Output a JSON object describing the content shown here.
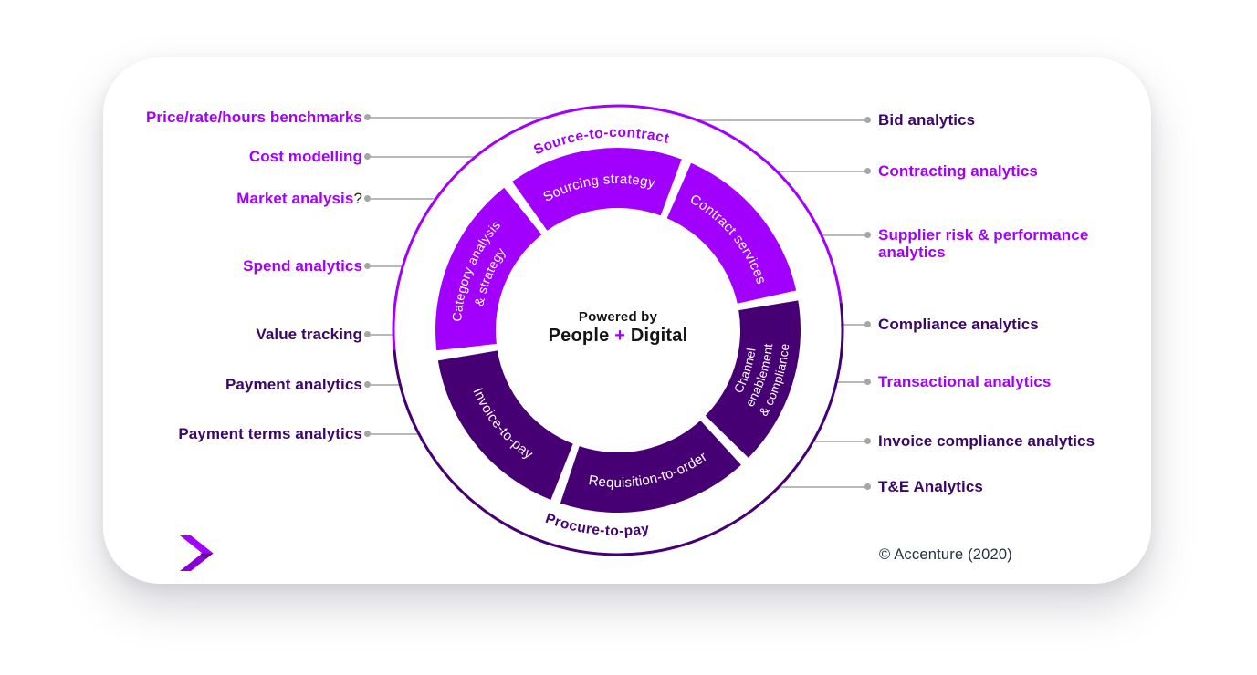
{
  "page": {
    "copyright": "© Accenture (2020)"
  },
  "center": {
    "line1": "Powered by",
    "line2_pre": "People ",
    "line2_plus": "+",
    "line2_post": " Digital"
  },
  "ring": {
    "top_label": "Source-to-contract",
    "bottom_label": "Procure-to-pay",
    "top_color": "#A100FF",
    "bottom_color": "#460073"
  },
  "donut": {
    "segments": [
      {
        "label": "Sourcing strategy",
        "lines": [
          "Sourcing strategy"
        ],
        "color": "#A100FF"
      },
      {
        "label": "Contract services",
        "lines": [
          "Contract services"
        ],
        "color": "#A100FF"
      },
      {
        "label": "Channel enablement & compliance",
        "lines": [
          "Channel",
          "enablement",
          "& compliance"
        ],
        "color": "#460073"
      },
      {
        "label": "Requisition-to-order",
        "lines": [
          "Requisition-to-order"
        ],
        "color": "#460073"
      },
      {
        "label": "Invoice-to-pay",
        "lines": [
          "Invoice-to-pay"
        ],
        "color": "#460073"
      },
      {
        "label": "Category analysis & strategy",
        "lines": [
          "Category analysis",
          "& strategy"
        ],
        "color": "#A100FF"
      }
    ]
  },
  "left_labels": [
    {
      "text": "Price/rate/hours benchmarks",
      "color": "purple"
    },
    {
      "text": "Cost modelling",
      "color": "purple"
    },
    {
      "text": "Market analysis",
      "suffix": "?",
      "color": "purple"
    },
    {
      "text": "Spend analytics",
      "color": "purple"
    },
    {
      "text": "Value tracking",
      "color": "dark"
    },
    {
      "text": "Payment analytics",
      "color": "dark"
    },
    {
      "text": "Payment terms analytics",
      "color": "dark"
    }
  ],
  "right_labels": [
    {
      "text": "Bid analytics",
      "color": "dark"
    },
    {
      "text": "Contracting analytics",
      "color": "purple"
    },
    {
      "text": "Supplier risk & performance analytics",
      "color": "purple"
    },
    {
      "text": "Compliance analytics",
      "color": "dark"
    },
    {
      "text": "Transactional analytics",
      "color": "purple"
    },
    {
      "text": "Invoice compliance analytics",
      "color": "dark"
    },
    {
      "text": "T&E Analytics",
      "color": "dark"
    }
  ],
  "colors": {
    "purple": "#A100FF",
    "dark_segment": "#460073",
    "dark_label": "#3B0764",
    "connector": "#B9B9B9"
  },
  "logo": {
    "name": "accenture-greater-than-logo",
    "color": "#A100FF"
  }
}
